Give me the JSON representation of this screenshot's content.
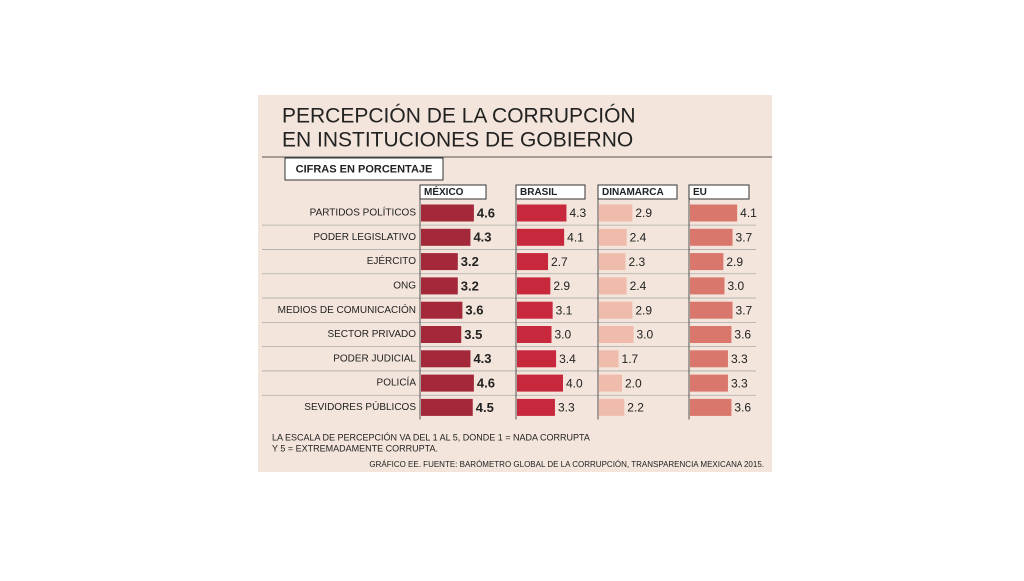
{
  "chart_data": {
    "type": "bar",
    "title": [
      "PERCEPCIÓN DE LA CORRUPCIÓN",
      "EN INSTITUCIONES DE GOBIERNO"
    ],
    "subtitle": "CIFRAS EN PORCENTAJE",
    "categories": [
      "PARTIDOS POLÍTICOS",
      "PODER LEGISLATIVO",
      "EJÉRCITO",
      "ONG",
      "MEDIOS DE COMUNICACIÓN",
      "SECTOR PRIVADO",
      "PODER JUDICIAL",
      "POLICÍA",
      "SEVIDORES PÚBLICOS"
    ],
    "series": [
      {
        "name": "MÉXICO",
        "color": "#a3283a",
        "values": [
          4.6,
          4.3,
          3.2,
          3.2,
          3.6,
          3.5,
          4.3,
          4.6,
          4.5
        ],
        "value_labels": [
          "4.6",
          "4.3",
          "3.2",
          "3.2",
          "3.6",
          "3.5",
          "4.3",
          "4.6",
          "4.5"
        ]
      },
      {
        "name": "BRASIL",
        "color": "#c8283c",
        "values": [
          4.3,
          4.1,
          2.7,
          2.9,
          3.1,
          3.0,
          3.4,
          4.0,
          3.3
        ],
        "value_labels": [
          "4.3",
          "4.1",
          "2.7",
          "2.9",
          "3.1",
          "3.0",
          "3.4",
          "4.0",
          "3.3"
        ]
      },
      {
        "name": "DINAMARCA",
        "color": "#efbcab",
        "values": [
          2.9,
          2.4,
          2.3,
          2.4,
          2.9,
          3.0,
          1.7,
          2.0,
          2.2
        ],
        "value_labels": [
          "2.9",
          "2.4",
          "2.3",
          "2.4",
          "2.9",
          "3.0",
          "1.7",
          "2.0",
          "2.2"
        ]
      },
      {
        "name": "EU",
        "color": "#d9776d",
        "values": [
          4.1,
          3.7,
          2.9,
          3.0,
          3.7,
          3.6,
          3.3,
          3.3,
          3.6
        ],
        "value_labels": [
          "4.1",
          "3.7",
          "2.9",
          "3.0",
          "3.7",
          "3.6",
          "3.3",
          "3.3",
          "3.6"
        ]
      }
    ],
    "note": [
      "LA ESCALA DE PERCEPCIÓN VA DEL 1 AL 5, DONDE 1 = NADA CORRUPTA",
      "Y 5 = EXTREMADAMENTE CORRUPTA."
    ],
    "source": "GRÁFICO EE. FUENTE: BARÓMETRO GLOBAL DE LA CORRUPCIÓN, TRANSPARENCIA MEXICANA 2015."
  }
}
